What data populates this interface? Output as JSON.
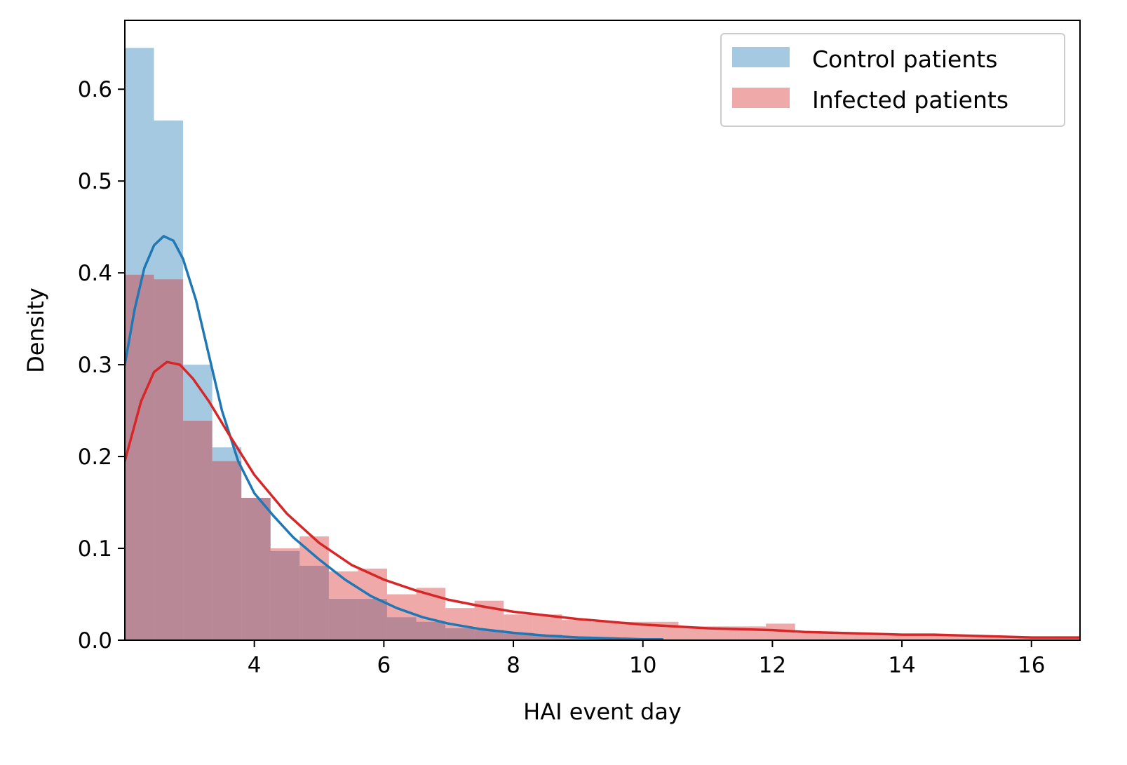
{
  "chart_data": {
    "type": "histogram+kde",
    "xlabel": "HAI event day",
    "ylabel": "Density",
    "xlim": [
      2.0,
      16.75
    ],
    "ylim": [
      0.0,
      0.675
    ],
    "x_ticks": [
      4,
      6,
      8,
      10,
      12,
      14,
      16
    ],
    "x_tick_labels": [
      "4",
      "6",
      "8",
      "10",
      "12",
      "14",
      "16"
    ],
    "y_ticks": [
      0.0,
      0.1,
      0.2,
      0.3,
      0.4,
      0.5,
      0.6
    ],
    "y_tick_labels": [
      "0.0",
      "0.1",
      "0.2",
      "0.3",
      "0.4",
      "0.5",
      "0.6"
    ],
    "legend_position": "top-right",
    "grid": false,
    "series": [
      {
        "name": "Control patients",
        "hist_color": "#a6c8e1",
        "line_color": "#1f77b4",
        "bin_edges": [
          2.0,
          2.45,
          2.9,
          3.35,
          3.8,
          4.25,
          4.7,
          5.15,
          5.6,
          6.05,
          6.5,
          6.95,
          7.4,
          7.85,
          8.3,
          8.75,
          9.2,
          9.65,
          10.1
        ],
        "hist_values": [
          0.645,
          0.566,
          0.3,
          0.21,
          0.155,
          0.097,
          0.081,
          0.045,
          0.045,
          0.025,
          0.02,
          0.013,
          0.011,
          0.008,
          0.006,
          0.004,
          0.003,
          0.002
        ],
        "kde": {
          "x": [
            2.0,
            2.15,
            2.3,
            2.45,
            2.6,
            2.75,
            2.9,
            3.1,
            3.3,
            3.5,
            3.75,
            4.0,
            4.3,
            4.6,
            5.0,
            5.4,
            5.8,
            6.2,
            6.6,
            7.0,
            7.5,
            8.0,
            8.5,
            9.0,
            9.5,
            10.0,
            10.3
          ],
          "y": [
            0.3,
            0.36,
            0.405,
            0.43,
            0.44,
            0.435,
            0.415,
            0.37,
            0.31,
            0.25,
            0.195,
            0.16,
            0.135,
            0.112,
            0.088,
            0.066,
            0.048,
            0.035,
            0.025,
            0.018,
            0.012,
            0.008,
            0.005,
            0.003,
            0.002,
            0.001,
            0.001
          ]
        }
      },
      {
        "name": "Infected patients",
        "hist_color": "#f0a9aa",
        "line_color": "#d62728",
        "bin_edges": [
          2.0,
          2.45,
          2.9,
          3.35,
          3.8,
          4.25,
          4.7,
          5.15,
          5.6,
          6.05,
          6.5,
          6.95,
          7.4,
          7.85,
          8.3,
          8.75,
          9.2,
          9.65,
          10.1,
          10.55,
          11.0,
          11.45,
          11.9,
          12.35,
          12.8,
          13.25,
          13.7,
          14.15,
          14.6,
          15.05,
          15.5,
          15.95,
          16.4,
          16.85
        ],
        "hist_values": [
          0.398,
          0.393,
          0.239,
          0.195,
          0.155,
          0.1,
          0.113,
          0.075,
          0.078,
          0.05,
          0.057,
          0.035,
          0.043,
          0.028,
          0.028,
          0.022,
          0.02,
          0.02,
          0.02,
          0.015,
          0.015,
          0.015,
          0.018,
          0.008,
          0.008,
          0.006,
          0.006,
          0.005,
          0.005,
          0.004,
          0.004,
          0.003,
          0.003
        ],
        "kde": {
          "x": [
            2.0,
            2.25,
            2.45,
            2.65,
            2.85,
            3.05,
            3.3,
            3.6,
            4.0,
            4.5,
            5.0,
            5.5,
            6.0,
            6.5,
            7.0,
            7.5,
            8.0,
            8.5,
            9.0,
            9.5,
            10.0,
            10.5,
            11.0,
            11.5,
            12.0,
            12.5,
            13.0,
            13.5,
            14.0,
            14.5,
            15.0,
            15.5,
            16.0,
            16.75
          ],
          "y": [
            0.195,
            0.26,
            0.292,
            0.303,
            0.3,
            0.285,
            0.26,
            0.225,
            0.18,
            0.138,
            0.106,
            0.082,
            0.066,
            0.054,
            0.044,
            0.037,
            0.031,
            0.027,
            0.023,
            0.02,
            0.017,
            0.015,
            0.013,
            0.012,
            0.011,
            0.009,
            0.008,
            0.007,
            0.006,
            0.006,
            0.005,
            0.004,
            0.003,
            0.003
          ]
        }
      }
    ]
  }
}
